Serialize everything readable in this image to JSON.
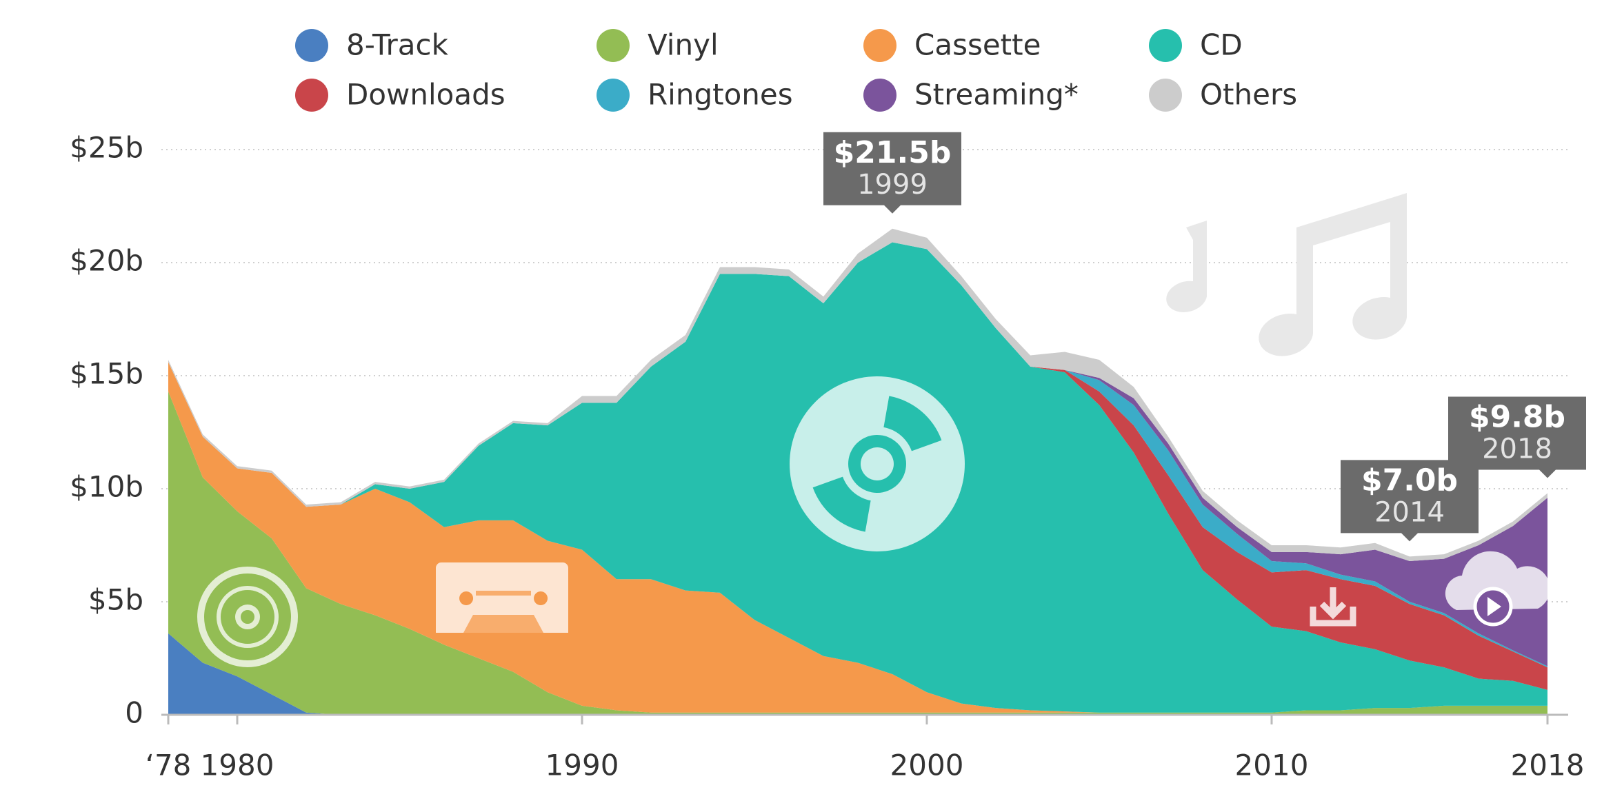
{
  "chart_data": {
    "type": "stacked_area",
    "x": [
      1978,
      1979,
      1980,
      1981,
      1982,
      1983,
      1984,
      1985,
      1986,
      1987,
      1988,
      1989,
      1990,
      1991,
      1992,
      1993,
      1994,
      1995,
      1996,
      1997,
      1998,
      1999,
      2000,
      2001,
      2002,
      2003,
      2004,
      2005,
      2006,
      2007,
      2008,
      2009,
      2010,
      2011,
      2012,
      2013,
      2014,
      2015,
      2016,
      2017,
      2018
    ],
    "xlim": [
      1978,
      2018
    ],
    "xticks": [
      {
        "value": 1978,
        "label": "‘78"
      },
      1980,
      1990,
      2000,
      2010,
      2018
    ],
    "ylim": [
      0,
      25
    ],
    "yticks": [
      0,
      {
        "value": 5,
        "label": "$5b"
      },
      {
        "value": 10,
        "label": "$10b"
      },
      {
        "value": 15,
        "label": "$15b"
      },
      {
        "value": 20,
        "label": "$20b"
      },
      {
        "value": 25,
        "label": "$25b"
      }
    ],
    "grid": true,
    "legend": "top",
    "series": [
      {
        "name": "8-Track",
        "color": "#4a7fc1",
        "values": [
          3.6,
          2.3,
          1.7,
          0.9,
          0.1,
          0,
          0,
          0,
          0,
          0,
          0,
          0,
          0,
          0,
          0,
          0,
          0,
          0,
          0,
          0,
          0,
          0,
          0,
          0,
          0,
          0,
          0,
          0,
          0,
          0,
          0,
          0,
          0,
          0,
          0,
          0,
          0,
          0,
          0,
          0,
          0
        ]
      },
      {
        "name": "Vinyl",
        "color": "#93bd54",
        "values": [
          10.7,
          8.2,
          7.3,
          6.9,
          5.5,
          4.9,
          4.4,
          3.8,
          3.1,
          2.5,
          1.9,
          1.0,
          0.4,
          0.2,
          0.1,
          0.1,
          0.1,
          0.1,
          0.1,
          0.1,
          0.1,
          0.1,
          0.1,
          0.1,
          0.1,
          0.1,
          0.1,
          0.1,
          0.1,
          0.1,
          0.1,
          0.1,
          0.1,
          0.2,
          0.2,
          0.3,
          0.3,
          0.4,
          0.4,
          0.4,
          0.4
        ]
      },
      {
        "name": "Cassette",
        "color": "#f5994b",
        "values": [
          1.3,
          1.8,
          1.9,
          2.9,
          3.6,
          4.4,
          5.6,
          5.6,
          5.2,
          6.1,
          6.7,
          6.7,
          6.9,
          5.8,
          5.9,
          5.4,
          5.3,
          4.1,
          3.3,
          2.5,
          2.2,
          1.7,
          0.9,
          0.4,
          0.2,
          0.1,
          0.05,
          0,
          0,
          0,
          0,
          0,
          0,
          0,
          0,
          0,
          0,
          0,
          0,
          0,
          0
        ]
      },
      {
        "name": "CD",
        "color": "#26bfad",
        "values": [
          0,
          0,
          0,
          0,
          0,
          0,
          0.2,
          0.6,
          2.0,
          3.3,
          4.3,
          5.1,
          6.5,
          7.8,
          9.4,
          11.0,
          14.1,
          15.3,
          16.0,
          15.6,
          17.7,
          19.1,
          19.6,
          18.5,
          16.8,
          15.2,
          15.0,
          13.6,
          11.5,
          8.8,
          6.3,
          5.0,
          3.8,
          3.5,
          3.0,
          2.6,
          2.1,
          1.7,
          1.2,
          1.1,
          0.7
        ]
      },
      {
        "name": "Downloads",
        "color": "#c9454a",
        "values": [
          0,
          0,
          0,
          0,
          0,
          0,
          0,
          0,
          0,
          0,
          0,
          0,
          0,
          0,
          0,
          0,
          0,
          0,
          0,
          0,
          0,
          0,
          0,
          0,
          0,
          0,
          0.1,
          0.6,
          1.2,
          1.7,
          1.9,
          2.1,
          2.4,
          2.7,
          2.8,
          2.8,
          2.5,
          2.3,
          1.9,
          1.3,
          1.0
        ]
      },
      {
        "name": "Ringtones",
        "color": "#3bacc8",
        "values": [
          0,
          0,
          0,
          0,
          0,
          0,
          0,
          0,
          0,
          0,
          0,
          0,
          0,
          0,
          0,
          0,
          0,
          0,
          0,
          0,
          0,
          0,
          0,
          0,
          0,
          0,
          0,
          0.5,
          0.9,
          1.1,
          1.0,
          0.8,
          0.5,
          0.3,
          0.2,
          0.2,
          0.1,
          0.1,
          0.1,
          0.05,
          0.05
        ]
      },
      {
        "name": "Streaming*",
        "color": "#7b549c",
        "values": [
          0,
          0,
          0,
          0,
          0,
          0,
          0,
          0,
          0,
          0,
          0,
          0,
          0,
          0,
          0,
          0,
          0,
          0,
          0,
          0,
          0,
          0,
          0,
          0,
          0,
          0,
          0,
          0.1,
          0.3,
          0.3,
          0.3,
          0.3,
          0.4,
          0.5,
          0.9,
          1.4,
          1.8,
          2.4,
          3.9,
          5.5,
          7.45
        ]
      },
      {
        "name": "Others",
        "color": "#cccccc",
        "values": [
          0.1,
          0.1,
          0.1,
          0.1,
          0.1,
          0.1,
          0.1,
          0.1,
          0.1,
          0.1,
          0.1,
          0.1,
          0.3,
          0.3,
          0.3,
          0.3,
          0.3,
          0.3,
          0.3,
          0.3,
          0.4,
          0.6,
          0.5,
          0.4,
          0.4,
          0.5,
          0.8,
          0.8,
          0.5,
          0.3,
          0.3,
          0.3,
          0.3,
          0.3,
          0.3,
          0.3,
          0.2,
          0.2,
          0.2,
          0.2,
          0.2
        ]
      }
    ],
    "annotations": [
      {
        "label": "$21.5b",
        "year": "1999"
      },
      {
        "label": "$7.0b",
        "year": "2014"
      },
      {
        "label": "$9.8b",
        "year": "2018"
      }
    ]
  }
}
